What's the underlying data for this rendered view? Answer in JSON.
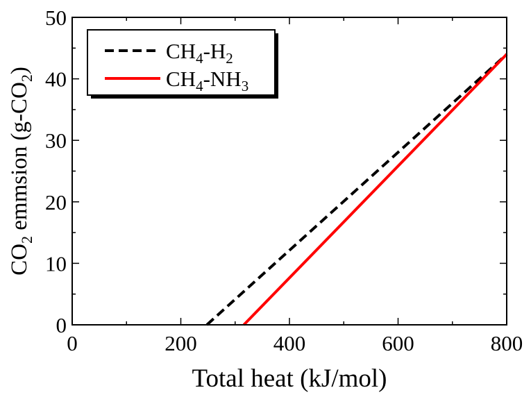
{
  "chart_data": {
    "type": "line",
    "xlabel": "Total heat (kJ/mol)",
    "ylabel": {
      "prefix": "CO",
      "prefix_sub": "2",
      "middle": " emmsion (g-CO",
      "middle_sub": "2",
      "suffix": ")"
    },
    "xlim": [
      0,
      800
    ],
    "ylim": [
      0,
      50
    ],
    "x_ticks": [
      0,
      200,
      400,
      600,
      800
    ],
    "y_ticks": [
      0,
      10,
      20,
      30,
      40,
      50
    ],
    "x_tick_labels": [
      "0",
      "200",
      "400",
      "600",
      "800"
    ],
    "y_tick_labels": [
      "0",
      "10",
      "20",
      "30",
      "40",
      "50"
    ],
    "x_minor_step": 100,
    "y_minor_step": 5,
    "grid": false,
    "legend_position": "top-left",
    "series": [
      {
        "name": "CH4-H2",
        "label_parts": [
          {
            "text": "CH"
          },
          {
            "text": "4",
            "sub": true
          },
          {
            "text": "-H"
          },
          {
            "text": "2",
            "sub": true
          }
        ],
        "color": "#000000",
        "style": "dashed",
        "points": [
          [
            248,
            0
          ],
          [
            800,
            44
          ]
        ]
      },
      {
        "name": "CH4-NH3",
        "label_parts": [
          {
            "text": "CH"
          },
          {
            "text": "4",
            "sub": true
          },
          {
            "text": "-NH"
          },
          {
            "text": "3",
            "sub": true
          }
        ],
        "color": "#ff0000",
        "style": "solid",
        "points": [
          [
            316,
            0
          ],
          [
            800,
            44
          ]
        ]
      }
    ]
  }
}
